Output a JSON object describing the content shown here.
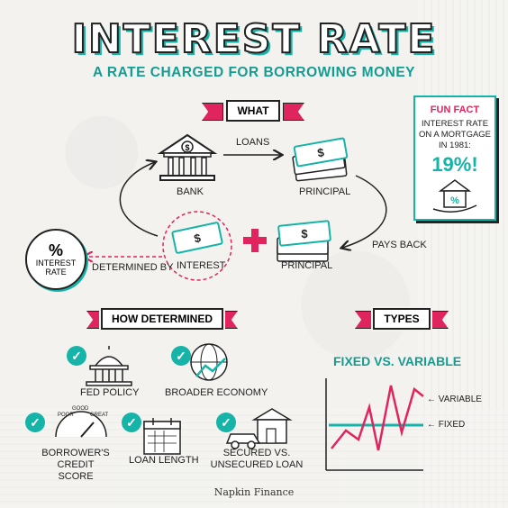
{
  "header": {
    "title": "INTEREST RATE",
    "subtitle": "A RATE CHARGED FOR BORROWING MONEY"
  },
  "what": {
    "banner": "WHAT",
    "bank_label": "BANK",
    "loans_label": "LOANS",
    "principal_top_label": "PRINCIPAL",
    "pays_back_label": "PAYS BACK",
    "principal_bottom_label": "PRINCIPAL",
    "interest_label": "INTEREST",
    "determined_by_label": "DETERMINED BY",
    "interest_rate_label": "INTEREST RATE",
    "percent_symbol": "%"
  },
  "fun_fact": {
    "heading": "FUN FACT",
    "text": "INTEREST RATE ON A MORTGAGE IN 1981:",
    "value": "19%!"
  },
  "how_determined": {
    "banner": "HOW DETERMINED",
    "items": [
      {
        "label": "FED POLICY",
        "icon": "capitol-icon"
      },
      {
        "label": "BROADER ECONOMY",
        "icon": "globe-chart-icon"
      },
      {
        "label": "BORROWER'S CREDIT SCORE",
        "icon": "gauge-icon",
        "gauge_poor": "POOR",
        "gauge_good": "GOOD",
        "gauge_great": "GREAT"
      },
      {
        "label": "LOAN LENGTH",
        "icon": "calendar-icon"
      },
      {
        "label": "SECURED VS. UNSECURED LOAN",
        "icon": "car-house-icon"
      }
    ]
  },
  "types": {
    "banner": "TYPES",
    "title": "FIXED VS. VARIABLE",
    "variable_label": "← VARIABLE",
    "fixed_label": "← FIXED"
  },
  "footer": {
    "brand": "Napkin Finance"
  },
  "colors": {
    "teal": "#15b3a8",
    "pink": "#e0245e",
    "ink": "#222222"
  }
}
